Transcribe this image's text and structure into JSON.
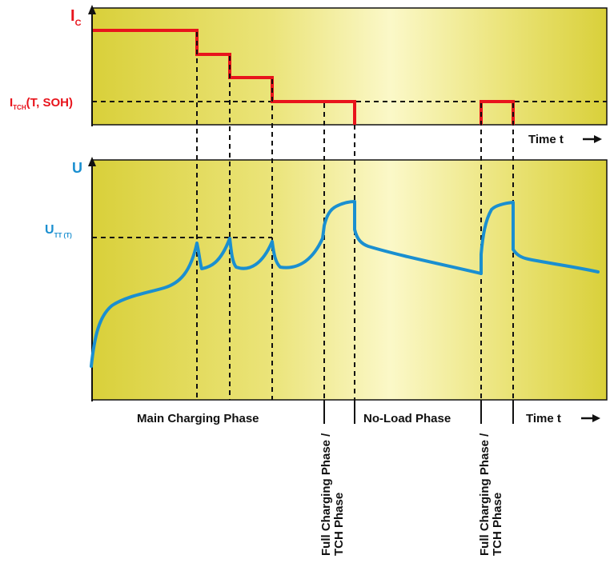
{
  "colors": {
    "current": "#e8141c",
    "voltage": "#1a8fd0",
    "panel_light": "#fbf8c6",
    "panel_dark": "#dcd43e",
    "dashed": "#111111"
  },
  "current_panel": {
    "y_axis_label": "I",
    "y_axis_sub": "C",
    "level_label_main": "I",
    "level_label_sub": "TCH",
    "level_label_rest": "(T, SOH)",
    "x_axis_label": "Time t"
  },
  "voltage_panel": {
    "y_axis_label": "U",
    "threshold_label_main": "U",
    "threshold_label_sub": "TT (T)",
    "x_axis_label": "Time t"
  },
  "phases": {
    "main_charging": "Main Charging Phase",
    "full_charging_line1": "Full Charging Phase /",
    "full_charging_line2": "TCH Phase",
    "no_load": "No-Load Phase",
    "full_charging_2_line1": "Full Charging Phase /",
    "full_charging_2_line2": "TCH Phase"
  }
}
